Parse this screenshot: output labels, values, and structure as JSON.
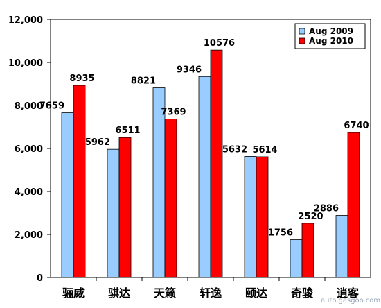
{
  "chart_data": {
    "type": "bar",
    "categories": [
      "骊威",
      "骐达",
      "天籁",
      "轩逸",
      "颐达",
      "奇骏",
      "逍客"
    ],
    "series": [
      {
        "name": "Aug 2009",
        "values": [
          7659,
          5962,
          8821,
          9346,
          5632,
          1756,
          2886
        ],
        "color": "#99ccff",
        "stroke": "#000000"
      },
      {
        "name": "Aug 2010",
        "values": [
          8935,
          6511,
          7369,
          10576,
          5614,
          2520,
          6740
        ],
        "color": "#ff0000",
        "stroke": "#000000"
      }
    ],
    "y_ticks": [
      "0",
      "2,000",
      "4,000",
      "6,000",
      "8,000",
      "10,000",
      "12,000"
    ],
    "ylim": [
      0,
      12000
    ],
    "grid": false,
    "legend_position": "top-right",
    "title": "",
    "xlabel": "",
    "ylabel": ""
  },
  "watermark": {
    "text": "auto.gasgoo.com"
  }
}
